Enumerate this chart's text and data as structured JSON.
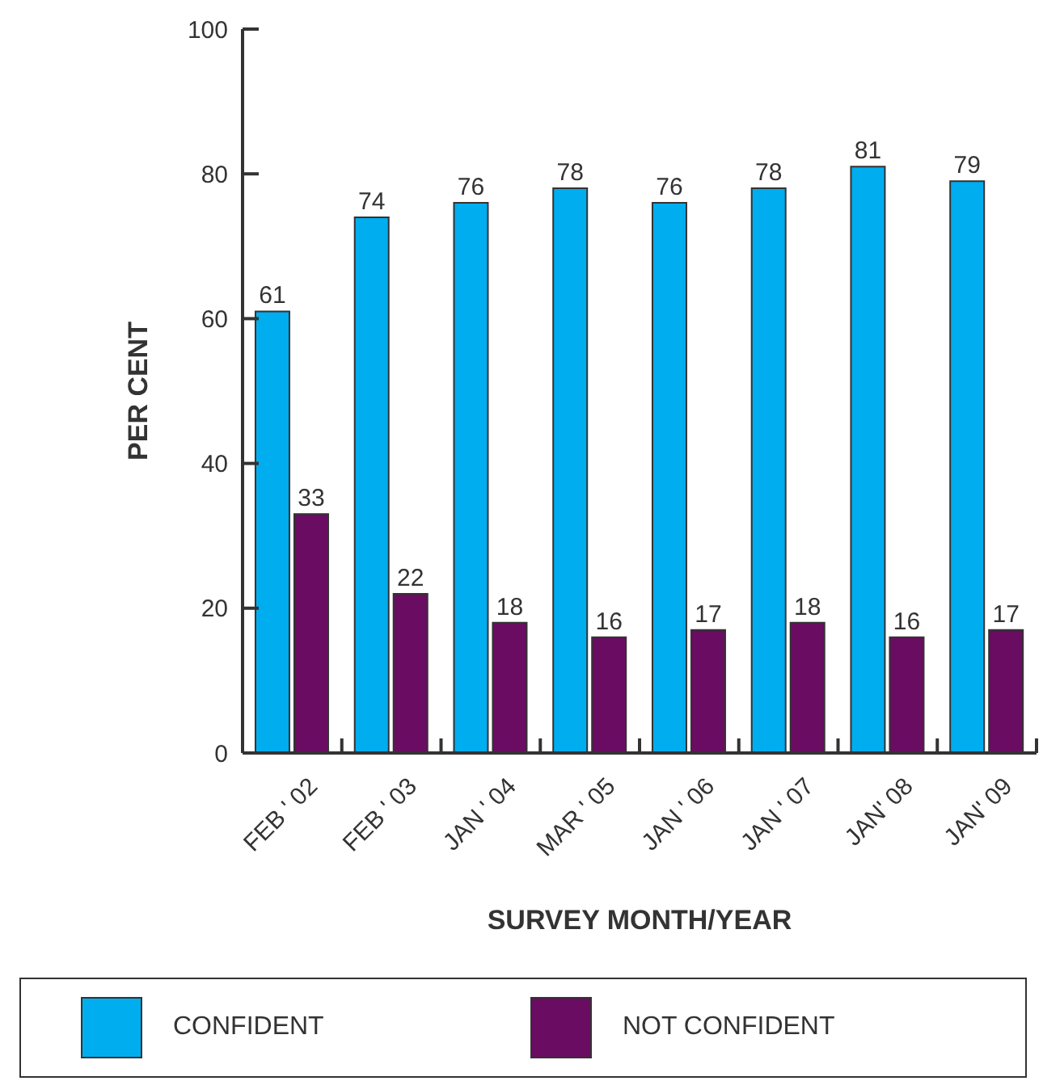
{
  "chart_data": {
    "type": "bar",
    "xlabel": "SURVEY MONTH/YEAR",
    "ylabel": "PER CENT",
    "categories": [
      "FEB ' 02",
      "FEB ' 03",
      "JAN ' 04",
      "MAR ' 05",
      "JAN ' 06",
      "JAN ' 07",
      "JAN' 08",
      "JAN' 09"
    ],
    "series": [
      {
        "name": "CONFIDENT",
        "color": "#00adef",
        "values": [
          61,
          74,
          76,
          78,
          76,
          78,
          81,
          79
        ]
      },
      {
        "name": "NOT CONFIDENT",
        "color": "#6a0c62",
        "values": [
          33,
          22,
          18,
          16,
          17,
          18,
          16,
          17
        ]
      }
    ],
    "ylim": [
      0,
      100
    ],
    "yticks": [
      0,
      20,
      40,
      60,
      80,
      100
    ],
    "data_labels": true,
    "legend": "bottom"
  }
}
